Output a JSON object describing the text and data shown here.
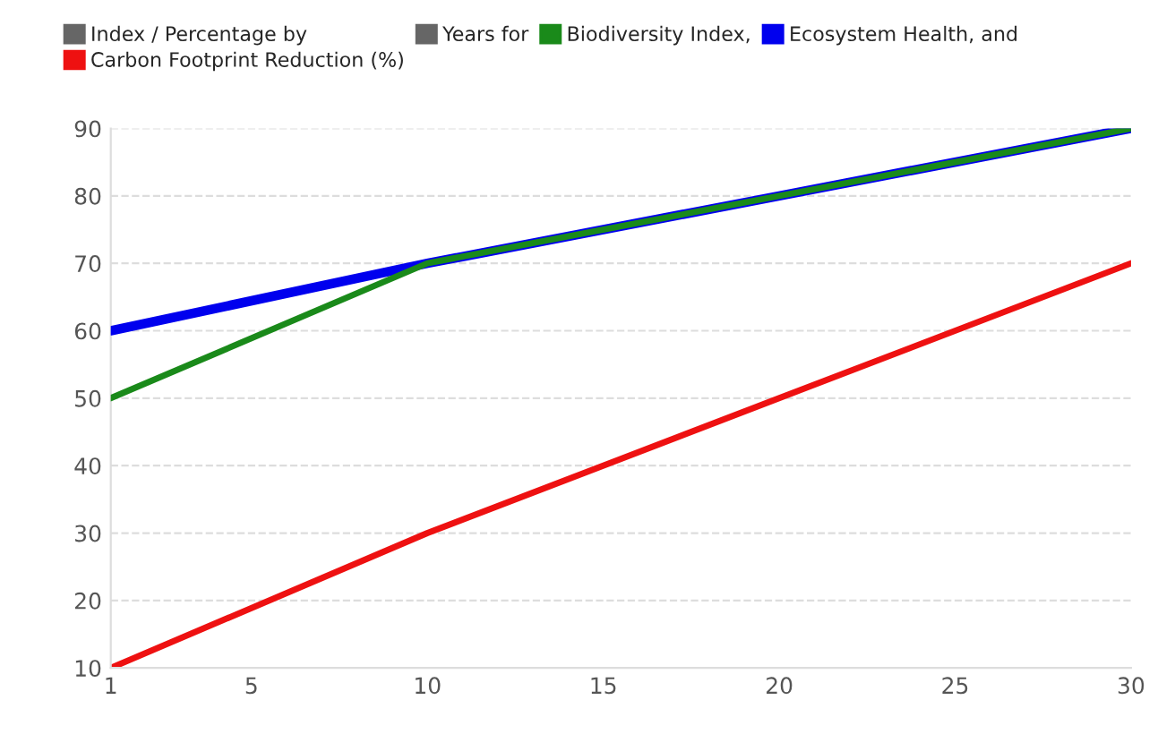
{
  "chart_data": {
    "type": "line",
    "xlabel": "Years for",
    "ylabel": "Index / Percentage by",
    "x": [
      1,
      10,
      20,
      30
    ],
    "series": [
      {
        "name": "Biodiversity Index,",
        "color": "#1a8a1a",
        "values": [
          50,
          70,
          80,
          90
        ]
      },
      {
        "name": "Ecosystem Health, and",
        "color": "#0000ee",
        "values": [
          60,
          70,
          80,
          90
        ]
      },
      {
        "name": "Carbon Footprint Reduction (%)",
        "color": "#ee1111",
        "values": [
          10,
          30,
          50,
          70
        ]
      }
    ],
    "xlim": [
      1,
      30
    ],
    "xticks": [
      1,
      5,
      10,
      15,
      20,
      25,
      30
    ],
    "ylim": [
      10,
      90
    ],
    "yticks": [
      10,
      20,
      30,
      40,
      50,
      60,
      70,
      80,
      90
    ],
    "grid": "y",
    "legend": "top",
    "marker": "none",
    "line_style": "solid"
  }
}
